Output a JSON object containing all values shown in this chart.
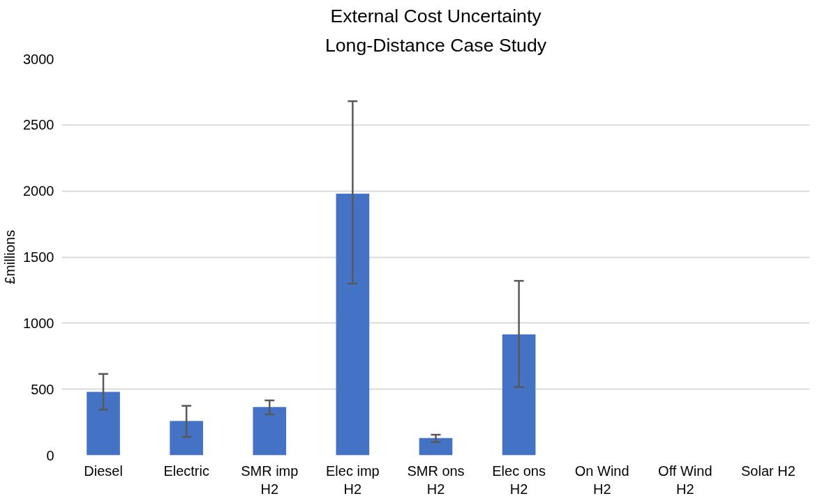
{
  "chart_data": {
    "type": "bar",
    "title": "External Cost Uncertainty",
    "subtitle": "Long-Distance Case Study",
    "ylabel": "£millions",
    "categories": [
      "Diesel",
      "Electric",
      "SMR imp H2",
      "Elec imp H2",
      "SMR ons H2",
      "Elec ons H2",
      "On Wind H2",
      "Off Wind H2",
      "Solar H2"
    ],
    "values": [
      480,
      260,
      365,
      1980,
      130,
      915,
      null,
      null,
      null
    ],
    "errors": [
      [
        345,
        615
      ],
      [
        140,
        375
      ],
      [
        310,
        415
      ],
      [
        1300,
        2680
      ],
      [
        100,
        155
      ],
      [
        515,
        1320
      ],
      null,
      null,
      null
    ],
    "color": "#4472c4",
    "ylim": [
      0,
      3000
    ],
    "yticks": [
      0,
      500,
      1000,
      1500,
      2000,
      2500,
      3000
    ],
    "grid": "y"
  }
}
